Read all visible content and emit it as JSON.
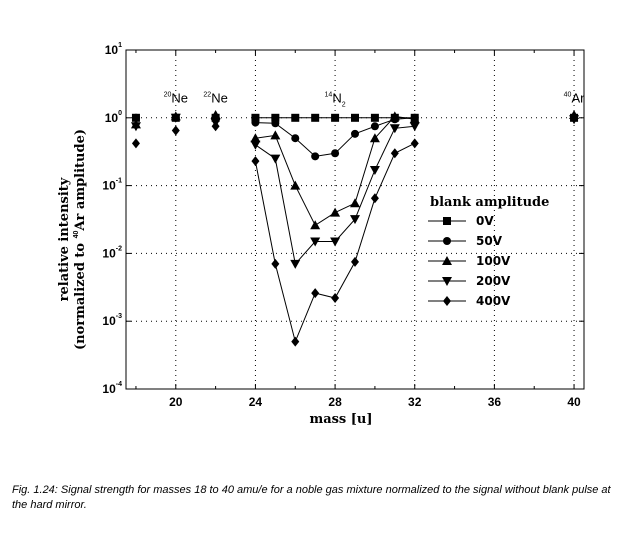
{
  "chart_data": {
    "type": "line",
    "xlabel": "mass [u]",
    "ylabel_line1": "relative intensity",
    "ylabel_line2_before": "(normalized to ",
    "ylabel_line2_sup": "40",
    "ylabel_line2_after": "Ar amplitude)",
    "xlim": [
      17.5,
      40.5
    ],
    "ylim": [
      0.0001,
      10
    ],
    "y_scale": "log",
    "x_ticks": [
      20,
      24,
      28,
      32,
      36,
      40
    ],
    "x_tick_labels": [
      "20",
      "24",
      "28",
      "32",
      "36",
      "40"
    ],
    "y_ticks": [
      {
        "value": 10,
        "base": "10",
        "exp": "1"
      },
      {
        "value": 1,
        "base": "10",
        "exp": "0"
      },
      {
        "value": 0.1,
        "base": "10",
        "exp": "-1"
      },
      {
        "value": 0.01,
        "base": "10",
        "exp": "-2"
      },
      {
        "value": 0.001,
        "base": "10",
        "exp": "-3"
      },
      {
        "value": 0.0001,
        "base": "10",
        "exp": "-4"
      }
    ],
    "grid": true,
    "legend_title": "blank amplitude",
    "legend_position": "right",
    "annotations": [
      {
        "sup": "20",
        "text": "Ne",
        "sub": "",
        "x": 20,
        "y": 1.8
      },
      {
        "sup": "22",
        "text": "Ne",
        "sub": "",
        "x": 22,
        "y": 1.8
      },
      {
        "sup": "14",
        "text": "N",
        "sub": "2",
        "x": 28,
        "y": 1.8
      },
      {
        "sup": "40",
        "text": "Ar",
        "sub": "",
        "x": 40,
        "y": 1.8
      }
    ],
    "series": [
      {
        "name": "0V",
        "marker": "square",
        "points": [
          [
            18,
            1.0
          ],
          [
            20,
            1.0
          ],
          [
            22,
            1.0
          ],
          [
            24,
            1.0
          ],
          [
            25,
            1.0
          ],
          [
            26,
            1.0
          ],
          [
            27,
            1.0
          ],
          [
            28,
            1.0
          ],
          [
            29,
            1.0
          ],
          [
            30,
            1.0
          ],
          [
            31,
            1.0
          ],
          [
            32,
            1.0
          ],
          [
            40,
            1.0
          ]
        ],
        "connect_range": [
          24,
          32
        ]
      },
      {
        "name": "50V",
        "marker": "circle",
        "points": [
          [
            18,
            1.0
          ],
          [
            20,
            1.0
          ],
          [
            22,
            1.0
          ],
          [
            24,
            0.85
          ],
          [
            25,
            0.83
          ],
          [
            26,
            0.5
          ],
          [
            27,
            0.27
          ],
          [
            28,
            0.3
          ],
          [
            29,
            0.58
          ],
          [
            30,
            0.75
          ],
          [
            31,
            0.95
          ],
          [
            32,
            1.0
          ],
          [
            40,
            1.0
          ]
        ],
        "connect_range": [
          24,
          32
        ]
      },
      {
        "name": "100V",
        "marker": "triangle-up",
        "points": [
          [
            18,
            0.8
          ],
          [
            20,
            1.05
          ],
          [
            22,
            1.1
          ],
          [
            24,
            0.5
          ],
          [
            25,
            0.55
          ],
          [
            26,
            0.1
          ],
          [
            27,
            0.026
          ],
          [
            28,
            0.04
          ],
          [
            29,
            0.055
          ],
          [
            30,
            0.5
          ],
          [
            31,
            1.05
          ],
          [
            32,
            0.95
          ],
          [
            40,
            1.1
          ]
        ],
        "connect_range": [
          24,
          32
        ]
      },
      {
        "name": "200V",
        "marker": "triangle-down",
        "points": [
          [
            18,
            0.75
          ],
          [
            20,
            1.0
          ],
          [
            22,
            0.85
          ],
          [
            24,
            0.4
          ],
          [
            25,
            0.25
          ],
          [
            26,
            0.007
          ],
          [
            27,
            0.015
          ],
          [
            28,
            0.015
          ],
          [
            29,
            0.032
          ],
          [
            30,
            0.17
          ],
          [
            31,
            0.7
          ],
          [
            32,
            0.75
          ],
          [
            40,
            0.95
          ]
        ],
        "connect_range": [
          24,
          32
        ]
      },
      {
        "name": "400V",
        "marker": "diamond",
        "points": [
          [
            18,
            0.42
          ],
          [
            20,
            0.65
          ],
          [
            22,
            0.75
          ],
          [
            24,
            0.23
          ],
          [
            25,
            0.007
          ],
          [
            26,
            0.0005
          ],
          [
            27,
            0.0026
          ],
          [
            28,
            0.0022
          ],
          [
            29,
            0.0075
          ],
          [
            30,
            0.065
          ],
          [
            31,
            0.3
          ],
          [
            32,
            0.42
          ],
          [
            40,
            1.0
          ]
        ],
        "connect_range": [
          24,
          32
        ]
      }
    ]
  },
  "caption": "Fig. 1.24: Signal strength for masses 18 to 40 amu/e for a noble gas mixture normalized to the signal without blank pulse at the hard mirror."
}
